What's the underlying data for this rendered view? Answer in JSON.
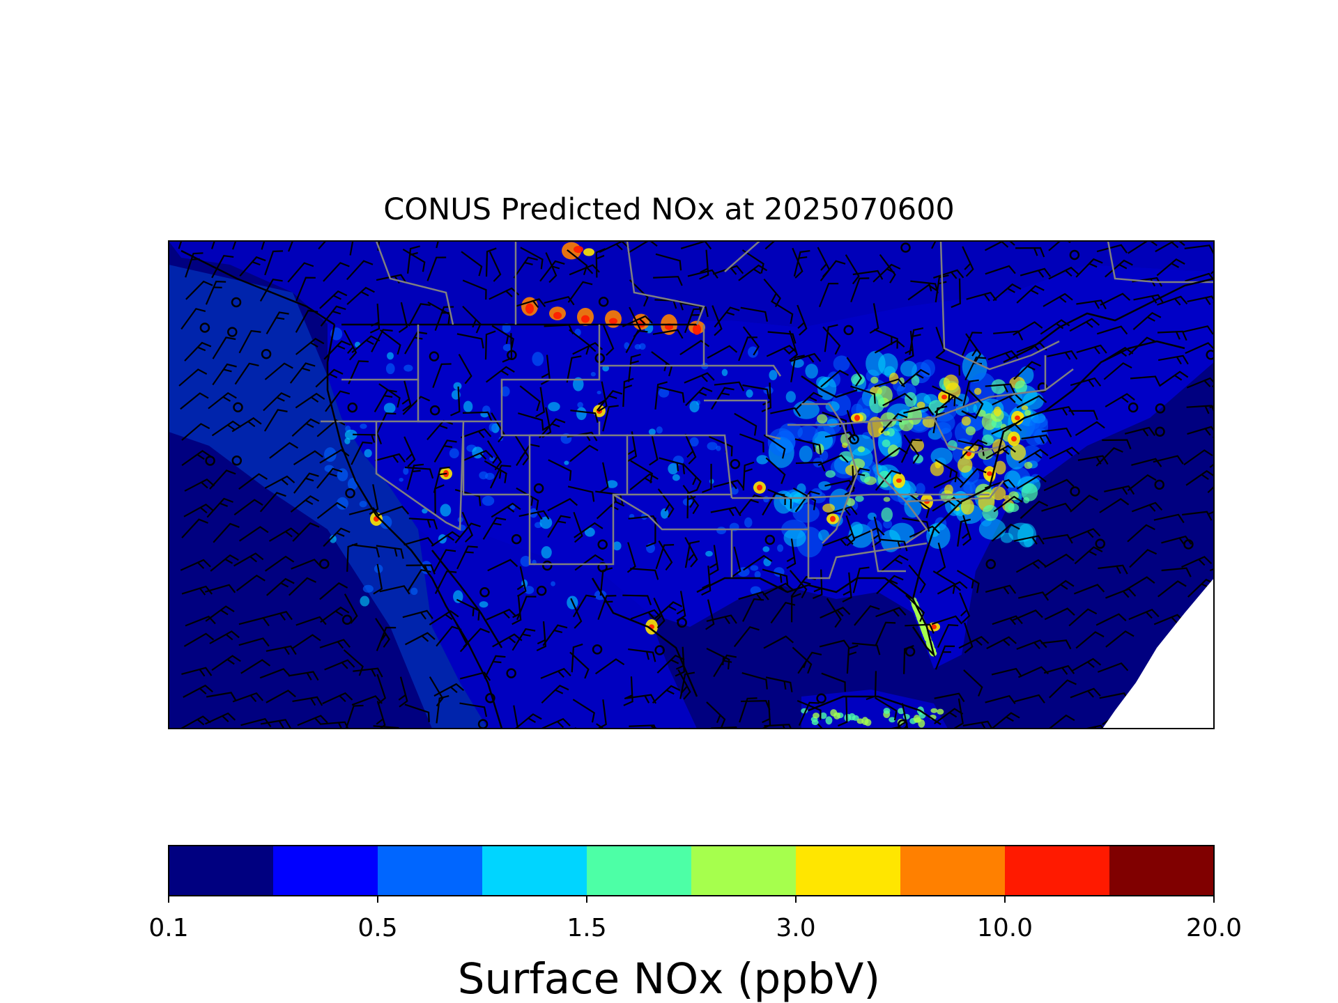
{
  "title": "CONUS Predicted NOx at 2025070600",
  "colorbar": {
    "label": "Surface NOx (ppbV)",
    "tick_labels": [
      "0.1",
      "0.5",
      "1.5",
      "3.0",
      "10.0",
      "20.0"
    ],
    "colors": [
      "#000080",
      "#0000ff",
      "#0066ff",
      "#00d5ff",
      "#4dffa6",
      "#a6ff4d",
      "#ffe600",
      "#ff8000",
      "#ff1a00",
      "#800000"
    ]
  },
  "map": {
    "background_color": "#000080",
    "land_color": "#0000ff",
    "hotspot_colors": [
      "#0066ff",
      "#00d5ff",
      "#4dffa6",
      "#a6ff4d",
      "#ffe600",
      "#ff8000",
      "#ff1a00",
      "#800000"
    ],
    "state_border_color": "#808080",
    "coastline_color": "#000000",
    "wind_barb_color": "#000000"
  }
}
